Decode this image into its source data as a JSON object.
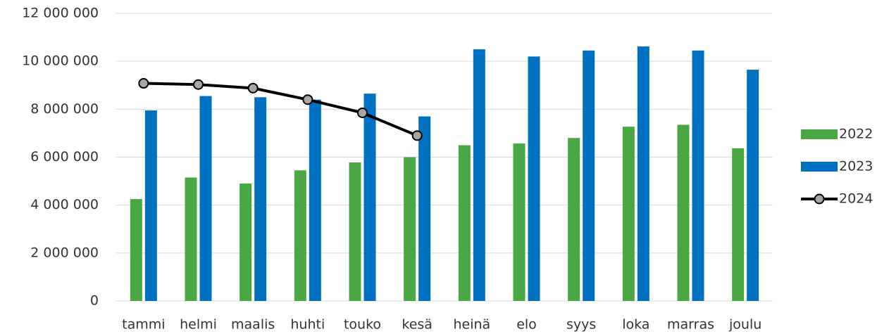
{
  "chart_data": {
    "type": "bar",
    "categories": [
      "tammi",
      "helmi",
      "maalis",
      "huhti",
      "touko",
      "kesä",
      "heinä",
      "elo",
      "syys",
      "loka",
      "marras",
      "joulu"
    ],
    "series": [
      {
        "name": "2022",
        "type": "bar",
        "color": "#4aa844",
        "values": [
          4250000,
          5150000,
          4900000,
          5450000,
          5780000,
          6000000,
          6500000,
          6570000,
          6800000,
          7270000,
          7350000,
          6370000
        ]
      },
      {
        "name": "2023",
        "type": "bar",
        "color": "#0070c0",
        "values": [
          7950000,
          8550000,
          8500000,
          8400000,
          8650000,
          7700000,
          10500000,
          10200000,
          10450000,
          10620000,
          10450000,
          9650000
        ]
      },
      {
        "name": "2024",
        "type": "line",
        "color": "#000000",
        "values": [
          9080000,
          9030000,
          8880000,
          8400000,
          7850000,
          6900000,
          null,
          null,
          null,
          null,
          null,
          null
        ]
      }
    ],
    "ylim": [
      0,
      12000000
    ],
    "yticks": [
      0,
      {
        "value": 2000000,
        "label": "2 000 000"
      },
      {
        "value": 4000000,
        "label": "4 000 000"
      },
      {
        "value": 6000000,
        "label": "6 000 000"
      },
      {
        "value": 8000000,
        "label": "8 000 000"
      },
      {
        "value": 10000000,
        "label": "10 000 000"
      },
      {
        "value": 12000000,
        "label": "12 000 000"
      }
    ],
    "grid": true,
    "legend": "right"
  }
}
